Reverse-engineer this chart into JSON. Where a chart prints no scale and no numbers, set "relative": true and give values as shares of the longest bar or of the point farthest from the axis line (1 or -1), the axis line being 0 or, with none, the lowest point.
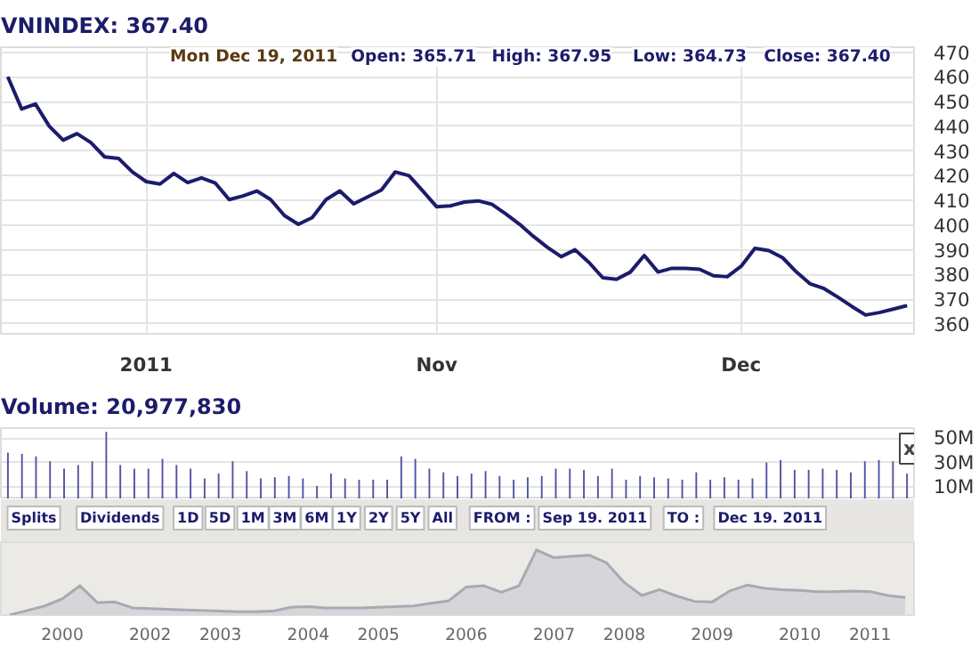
{
  "chart_data": [
    {
      "type": "line",
      "title": "VNINDEX: 367.40",
      "annotations": [
        "Mon Dec 19, 2011",
        "Open: 365.71",
        "High: 367.95",
        "Low: 364.73",
        "Close: 367.40"
      ],
      "categories": [
        null,
        null,
        null,
        null,
        null,
        null,
        null,
        null,
        null,
        null,
        "2011",
        null,
        null,
        null,
        null,
        null,
        null,
        null,
        null,
        null,
        null,
        null,
        null,
        null,
        null,
        null,
        null,
        null,
        null,
        null,
        null,
        "Nov",
        null,
        null,
        null,
        null,
        null,
        null,
        null,
        null,
        null,
        null,
        null,
        null,
        null,
        null,
        null,
        null,
        null,
        null,
        null,
        null,
        null,
        "Dec",
        null,
        null,
        null,
        null,
        null,
        null,
        null,
        null,
        null,
        null,
        null,
        null
      ],
      "values": [
        460,
        447,
        449,
        440,
        434.4,
        437,
        433.4,
        427.6,
        427,
        421.5,
        417.6,
        416.6,
        420.9,
        417.2,
        419.1,
        417,
        410.3,
        411.8,
        413.8,
        410.3,
        403.8,
        400.3,
        403,
        410.3,
        413.8,
        408.6,
        411.4,
        414.2,
        421.5,
        420,
        413.8,
        407.4,
        407.8,
        409.3,
        409.8,
        408.4,
        404.5,
        400.3,
        395.4,
        391,
        387.2,
        390,
        384.9,
        378.7,
        378.1,
        381,
        387.7,
        381,
        382.5,
        382.5,
        382.1,
        379.5,
        379.1,
        383.3,
        390.6,
        389.7,
        386.8,
        381,
        376.2,
        374.3,
        370.8,
        367.1,
        363.6,
        364.6,
        366,
        367.4
      ],
      "color": "#1c1c6b",
      "ylim": [
        356,
        472
      ],
      "yticks": [
        360,
        370,
        380,
        390,
        400,
        410,
        420,
        430,
        440,
        450,
        460,
        470
      ],
      "grid": true
    },
    {
      "type": "bar",
      "title": "Volume: 20,977,830",
      "annotations": [
        "x"
      ],
      "categories": [
        null,
        null,
        null,
        null,
        null,
        null,
        null,
        null,
        null,
        null,
        null,
        null,
        null,
        null,
        null,
        null,
        null,
        null,
        null,
        null,
        null,
        null,
        null,
        null,
        null,
        null,
        null,
        null,
        null,
        null,
        null,
        null,
        null,
        null,
        null,
        null,
        null,
        null,
        null,
        null,
        null,
        null,
        null,
        null,
        null,
        null,
        null,
        null,
        null,
        null,
        null,
        null,
        null,
        null,
        null,
        null,
        null,
        null,
        null,
        null,
        null,
        null,
        null,
        null,
        null
      ],
      "values": [
        38,
        37,
        35,
        31,
        25,
        28,
        31,
        55,
        28,
        25,
        25,
        33,
        28,
        25,
        17,
        21,
        31,
        23,
        17,
        18,
        19,
        17,
        11,
        21,
        17,
        16,
        16,
        16,
        35,
        33,
        25,
        22,
        19,
        21,
        23,
        19,
        16,
        18,
        19,
        25,
        25,
        24,
        19,
        25,
        16,
        19,
        18,
        17,
        16,
        22,
        16,
        18,
        16,
        17,
        30,
        32,
        24,
        24,
        25,
        24,
        22,
        31,
        32,
        31,
        21
      ],
      "color": "#5252a3",
      "ylim": [
        0,
        58
      ],
      "yticks": [
        {
          "value": 10,
          "label": "10M"
        },
        {
          "value": 30,
          "label": "30M"
        },
        {
          "value": 50,
          "label": "50M"
        }
      ],
      "grid": "y",
      "tick_labels": "y"
    },
    {
      "type": "other",
      "annotations": [
        "Splits",
        "Dividends",
        "1D",
        "5D",
        "1M",
        "3M",
        "6M",
        "1Y",
        "2Y",
        "5Y",
        "All",
        "FROM :",
        "Sep 19. 2011",
        "TO :",
        "Dec 19. 2011"
      ]
    },
    {
      "type": "area",
      "relative": true,
      "categories": [
        null,
        null,
        null,
        "2000",
        null,
        null,
        null,
        null,
        "2002",
        null,
        null,
        null,
        "2003",
        null,
        null,
        null,
        null,
        "2004",
        null,
        null,
        null,
        "2005",
        null,
        null,
        null,
        null,
        "2006",
        null,
        null,
        null,
        null,
        "2007",
        null,
        null,
        null,
        "2008",
        null,
        null,
        null,
        null,
        "2009",
        null,
        null,
        null,
        null,
        "2010",
        null,
        null,
        null,
        "2011",
        null,
        null
      ],
      "values": [
        0,
        0.07,
        0.14,
        0.25,
        0.45,
        0.19,
        0.2,
        0.11,
        0.1,
        0.09,
        0.08,
        0.07,
        0.06,
        0.05,
        0.05,
        0.06,
        0.12,
        0.13,
        0.11,
        0.11,
        0.11,
        0.12,
        0.13,
        0.14,
        0.18,
        0.22,
        0.43,
        0.45,
        0.35,
        0.45,
        1,
        0.88,
        0.9,
        0.92,
        0.8,
        0.5,
        0.3,
        0.39,
        0.29,
        0.21,
        0.2,
        0.37,
        0.46,
        0.41,
        0.39,
        0.38,
        0.36,
        0.36,
        0.37,
        0.36,
        0.3,
        0.27
      ],
      "color": "#d6d6da"
    }
  ]
}
